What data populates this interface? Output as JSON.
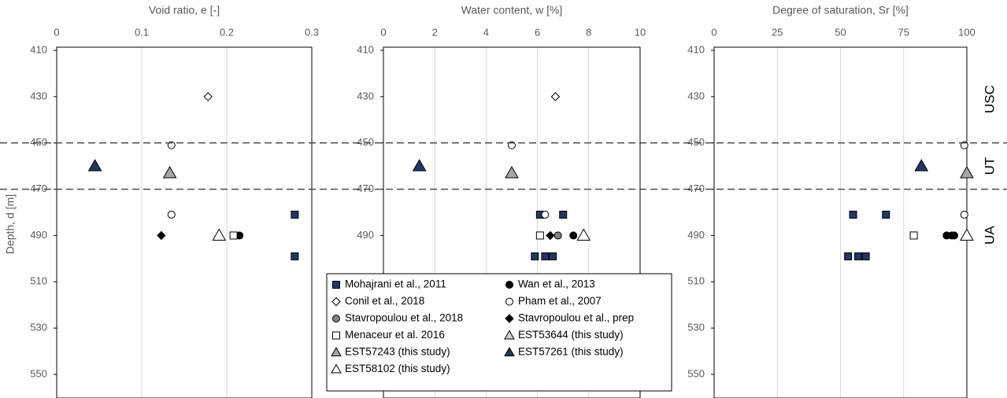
{
  "chart_data": [
    {
      "type": "scatter",
      "title": "Void ratio, e [-]",
      "y_label": "Depth, d [m]",
      "xlim": [
        0,
        0.3
      ],
      "xticks": [
        0,
        0.1,
        0.2,
        0.3
      ],
      "ylim": [
        410,
        560
      ],
      "yticks": [
        410,
        430,
        450,
        470,
        490,
        510,
        530,
        550
      ],
      "grid": true,
      "series": [
        {
          "marker": "square",
          "color": "#1f3864",
          "x": [
            0.28,
            0.28
          ],
          "values": [
            481,
            499
          ]
        },
        {
          "marker": "circle",
          "color": "#000000",
          "x": [
            0.215
          ],
          "values": [
            490
          ]
        },
        {
          "marker": "diamond",
          "color": "#ffffff",
          "x": [
            0.178
          ],
          "values": [
            430
          ]
        },
        {
          "marker": "circle",
          "color": "#ffffff",
          "x": [
            0.135,
            0.135
          ],
          "values": [
            451,
            481
          ]
        },
        {
          "marker": "diamond",
          "color": "#000000",
          "x": [
            0.123
          ],
          "values": [
            490
          ]
        },
        {
          "marker": "square",
          "color": "#ffffff",
          "x": [
            0.208
          ],
          "values": [
            490
          ]
        },
        {
          "marker": "triangle",
          "color": "#a6a6a6",
          "x": [
            0.133
          ],
          "values": [
            463
          ]
        },
        {
          "marker": "triangle",
          "color": "#1f3864",
          "x": [
            0.045
          ],
          "values": [
            460
          ]
        },
        {
          "marker": "triangle",
          "color": "#ffffff",
          "x": [
            0.191
          ],
          "values": [
            490
          ]
        }
      ]
    },
    {
      "type": "scatter",
      "title": "Water content, w [%]",
      "xlim": [
        0,
        10
      ],
      "xticks": [
        0,
        2,
        4,
        6,
        8,
        10
      ],
      "ylim": [
        410,
        560
      ],
      "yticks": [
        410,
        430,
        450,
        470,
        490,
        510,
        530,
        550
      ],
      "grid": true,
      "series": [
        {
          "name": "Mohajrani et al., 2011",
          "marker": "square",
          "color": "#1f3864",
          "x": [
            6.1,
            7.0,
            5.9,
            6.3,
            6.6
          ],
          "values": [
            481,
            481,
            499,
            499,
            499
          ]
        },
        {
          "name": "Wan et al., 2013",
          "marker": "circle",
          "color": "#000000",
          "x": [
            7.4
          ],
          "values": [
            490
          ]
        },
        {
          "name": "Conil et al., 2018",
          "marker": "diamond",
          "color": "#ffffff",
          "x": [
            6.7
          ],
          "values": [
            430
          ]
        },
        {
          "name": "Pham et al., 2007",
          "marker": "circle",
          "color": "#ffffff",
          "x": [
            5.0,
            6.3
          ],
          "values": [
            451,
            481
          ]
        },
        {
          "name": "Stavropoulou et al., 2018",
          "marker": "circle",
          "color": "#808080",
          "x": [
            6.8
          ],
          "values": [
            490
          ]
        },
        {
          "name": "Stavropoulou et al., prep",
          "marker": "diamond",
          "color": "#000000",
          "x": [
            6.5
          ],
          "values": [
            490
          ]
        },
        {
          "name": "Menaceur et al. 2016",
          "marker": "square",
          "color": "#ffffff",
          "x": [
            6.1
          ],
          "values": [
            490
          ]
        },
        {
          "name": "EST53644 (this study)",
          "marker": "triangle",
          "color": "#d0d0d0",
          "x": [],
          "values": []
        },
        {
          "name": "EST57243 (this study)",
          "marker": "triangle",
          "color": "#a6a6a6",
          "x": [
            5.0
          ],
          "values": [
            463
          ]
        },
        {
          "name": "EST57261 (this study)",
          "marker": "triangle",
          "color": "#1f3864",
          "x": [
            1.4
          ],
          "values": [
            460
          ]
        },
        {
          "name": "EST58102 (this study)",
          "marker": "triangle",
          "color": "#ffffff",
          "x": [
            7.8
          ],
          "values": [
            490
          ]
        }
      ]
    },
    {
      "type": "scatter",
      "title": "Degree of saturation, Sr [%]",
      "xlim": [
        0,
        100
      ],
      "xticks": [
        0,
        25,
        50,
        75,
        100
      ],
      "ylim": [
        410,
        560
      ],
      "yticks": [
        410,
        430,
        450,
        470,
        490,
        510,
        530,
        550
      ],
      "grid": true,
      "hlines": [
        450,
        470
      ],
      "zone_labels": [
        "USC",
        "UT",
        "UA"
      ],
      "series": [
        {
          "marker": "square",
          "color": "#1f3864",
          "x": [
            55,
            68,
            53,
            57,
            60
          ],
          "values": [
            481,
            481,
            499,
            499,
            499
          ]
        },
        {
          "marker": "circle",
          "color": "#000000",
          "x": [
            92,
            94,
            95
          ],
          "values": [
            490,
            490,
            490
          ]
        },
        {
          "marker": "circle",
          "color": "#ffffff",
          "x": [
            99,
            99
          ],
          "values": [
            451,
            481
          ]
        },
        {
          "marker": "square",
          "color": "#ffffff",
          "x": [
            79
          ],
          "values": [
            490
          ]
        },
        {
          "marker": "triangle",
          "color": "#a6a6a6",
          "x": [
            100
          ],
          "values": [
            463
          ]
        },
        {
          "marker": "triangle",
          "color": "#1f3864",
          "x": [
            82
          ],
          "values": [
            460
          ]
        },
        {
          "marker": "triangle",
          "color": "#ffffff",
          "x": [
            100
          ],
          "values": [
            490
          ]
        }
      ]
    }
  ]
}
